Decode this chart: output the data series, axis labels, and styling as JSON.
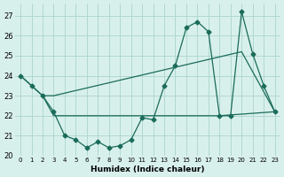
{
  "line1_x": [
    0,
    1,
    2,
    3,
    4,
    5,
    6,
    7,
    8,
    9,
    10,
    11,
    12,
    13,
    14,
    15,
    16,
    17,
    18,
    19,
    20,
    21,
    22,
    23
  ],
  "line1_y": [
    24.0,
    23.5,
    23.0,
    22.2,
    21.0,
    20.8,
    20.4,
    20.7,
    20.4,
    20.5,
    20.8,
    21.9,
    21.8,
    23.5,
    24.5,
    26.4,
    26.7,
    26.2,
    22.0,
    22.0,
    27.2,
    25.1,
    23.5,
    22.2
  ],
  "line2_x": [
    0,
    2,
    3,
    20,
    23
  ],
  "line2_y": [
    24.0,
    23.0,
    23.0,
    25.2,
    22.2
  ],
  "line3_x": [
    2,
    3,
    18,
    23
  ],
  "line3_y": [
    23.0,
    22.0,
    22.0,
    22.2
  ],
  "line_color": "#1a6b5a",
  "bg_color": "#d8f0ec",
  "grid_color": "#b0d8d0",
  "xlabel": "Humidex (Indice chaleur)",
  "xlim": [
    -0.5,
    23.5
  ],
  "ylim": [
    20,
    27.6
  ],
  "yticks": [
    20,
    21,
    22,
    23,
    24,
    25,
    26,
    27
  ],
  "xticks": [
    0,
    1,
    2,
    3,
    4,
    5,
    6,
    7,
    8,
    9,
    10,
    11,
    12,
    13,
    14,
    15,
    16,
    17,
    18,
    19,
    20,
    21,
    22,
    23
  ],
  "xtick_labels": [
    "0",
    "1",
    "2",
    "3",
    "4",
    "5",
    "6",
    "7",
    "8",
    "9",
    "10",
    "11",
    "12",
    "13",
    "14",
    "15",
    "16",
    "17",
    "18",
    "19",
    "20",
    "21",
    "22",
    "23"
  ],
  "marker": "D",
  "markersize": 2.5
}
